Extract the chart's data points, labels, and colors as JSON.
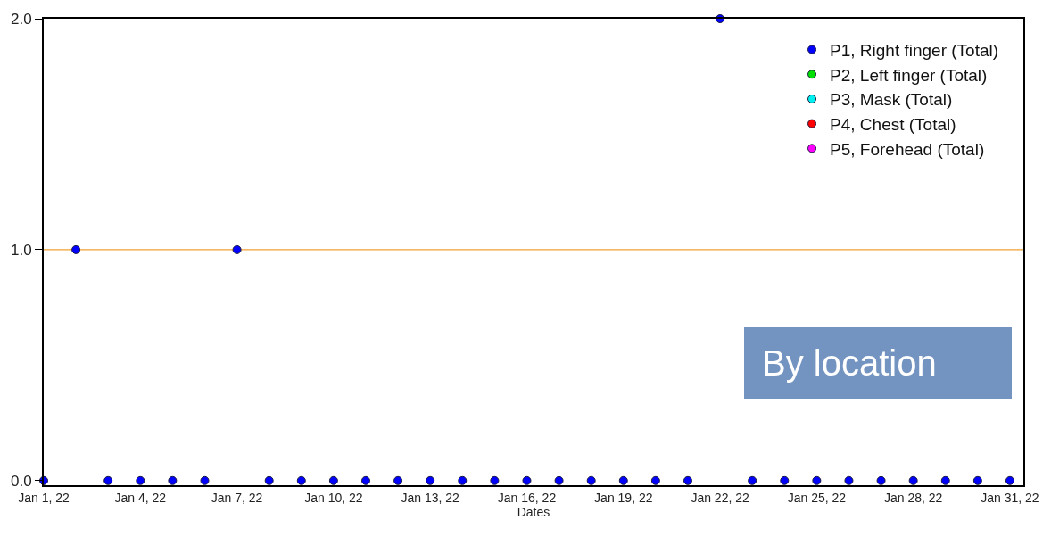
{
  "chart_data": {
    "type": "scatter",
    "xlabel": "Dates",
    "marker": "circle",
    "legend": "top right",
    "grid": false,
    "x": [
      "--01-01",
      "--01-02",
      "--01-03",
      "--01-04",
      "--01-05",
      "--01-06",
      "--01-07",
      "--01-08",
      "--01-09",
      "--01-10",
      "--01-11",
      "--01-12",
      "--01-13",
      "--01-14",
      "--01-15",
      "--01-16",
      "--01-17",
      "--01-18",
      "--01-19",
      "--01-20",
      "--01-21",
      "--01-22",
      "--01-23",
      "--01-24",
      "--01-25",
      "--01-26",
      "--01-27",
      "--01-28",
      "--01-29",
      "--01-30",
      "--01-31"
    ],
    "xlim": [
      "--01-01",
      "--01-31T10:00"
    ],
    "xticks": [
      {
        "value": "--01-01",
        "label": "Jan 1, 22"
      },
      {
        "value": "--01-04",
        "label": "Jan 4, 22"
      },
      {
        "value": "--01-07",
        "label": "Jan 7, 22"
      },
      {
        "value": "--01-10",
        "label": "Jan 10, 22"
      },
      {
        "value": "--01-13",
        "label": "Jan 13, 22"
      },
      {
        "value": "--01-16",
        "label": "Jan 16, 22"
      },
      {
        "value": "--01-19",
        "label": "Jan 19, 22"
      },
      {
        "value": "--01-22",
        "label": "Jan 22, 22"
      },
      {
        "value": "--01-25",
        "label": "Jan 25, 22"
      },
      {
        "value": "--01-28",
        "label": "Jan 28, 22"
      },
      {
        "value": "--01-31",
        "label": "Jan 31, 22"
      }
    ],
    "ylim": [
      -0.02,
      2.0
    ],
    "yticks": [
      {
        "value": 0,
        "label": "0.0"
      },
      {
        "value": 1,
        "label": "1.0"
      },
      {
        "value": 2,
        "label": "2.0"
      }
    ],
    "ref_lines": [
      {
        "axis": "y",
        "value": 1,
        "color": "#f0a030"
      }
    ],
    "annotations": [
      "By location"
    ],
    "series": [
      {
        "name": "P1, Right finger (Total)",
        "color": "#0000ff",
        "values": [
          0,
          1,
          0,
          0,
          0,
          0,
          1,
          0,
          0,
          0,
          0,
          0,
          0,
          0,
          0,
          0,
          0,
          0,
          0,
          0,
          0,
          2,
          0,
          0,
          0,
          0,
          0,
          0,
          0,
          0,
          0
        ]
      },
      {
        "name": "P2, Left finger (Total)",
        "color": "#00e000",
        "values": [
          null,
          null,
          null,
          null,
          null,
          null,
          null,
          null,
          null,
          null,
          null,
          null,
          null,
          null,
          null,
          null,
          null,
          null,
          null,
          null,
          null,
          null,
          null,
          null,
          null,
          null,
          null,
          null,
          null,
          null,
          null
        ]
      },
      {
        "name": "P3, Mask (Total)",
        "color": "#00f0f0",
        "values": [
          null,
          null,
          null,
          null,
          null,
          null,
          null,
          null,
          null,
          null,
          null,
          null,
          null,
          null,
          null,
          null,
          null,
          null,
          null,
          null,
          null,
          null,
          null,
          null,
          null,
          null,
          null,
          null,
          null,
          null,
          null
        ]
      },
      {
        "name": "P4, Chest (Total)",
        "color": "#ff0000",
        "values": [
          null,
          null,
          null,
          null,
          null,
          null,
          null,
          null,
          null,
          null,
          null,
          null,
          null,
          null,
          null,
          null,
          null,
          null,
          null,
          null,
          null,
          null,
          null,
          null,
          null,
          null,
          null,
          null,
          null,
          null,
          null
        ]
      },
      {
        "name": "P5, Forehead (Total)",
        "color": "#ff00ff",
        "values": [
          null,
          null,
          null,
          null,
          null,
          null,
          null,
          null,
          null,
          null,
          null,
          null,
          null,
          null,
          null,
          null,
          null,
          null,
          null,
          null,
          null,
          null,
          null,
          null,
          null,
          null,
          null,
          null,
          null,
          null,
          null
        ]
      }
    ]
  }
}
